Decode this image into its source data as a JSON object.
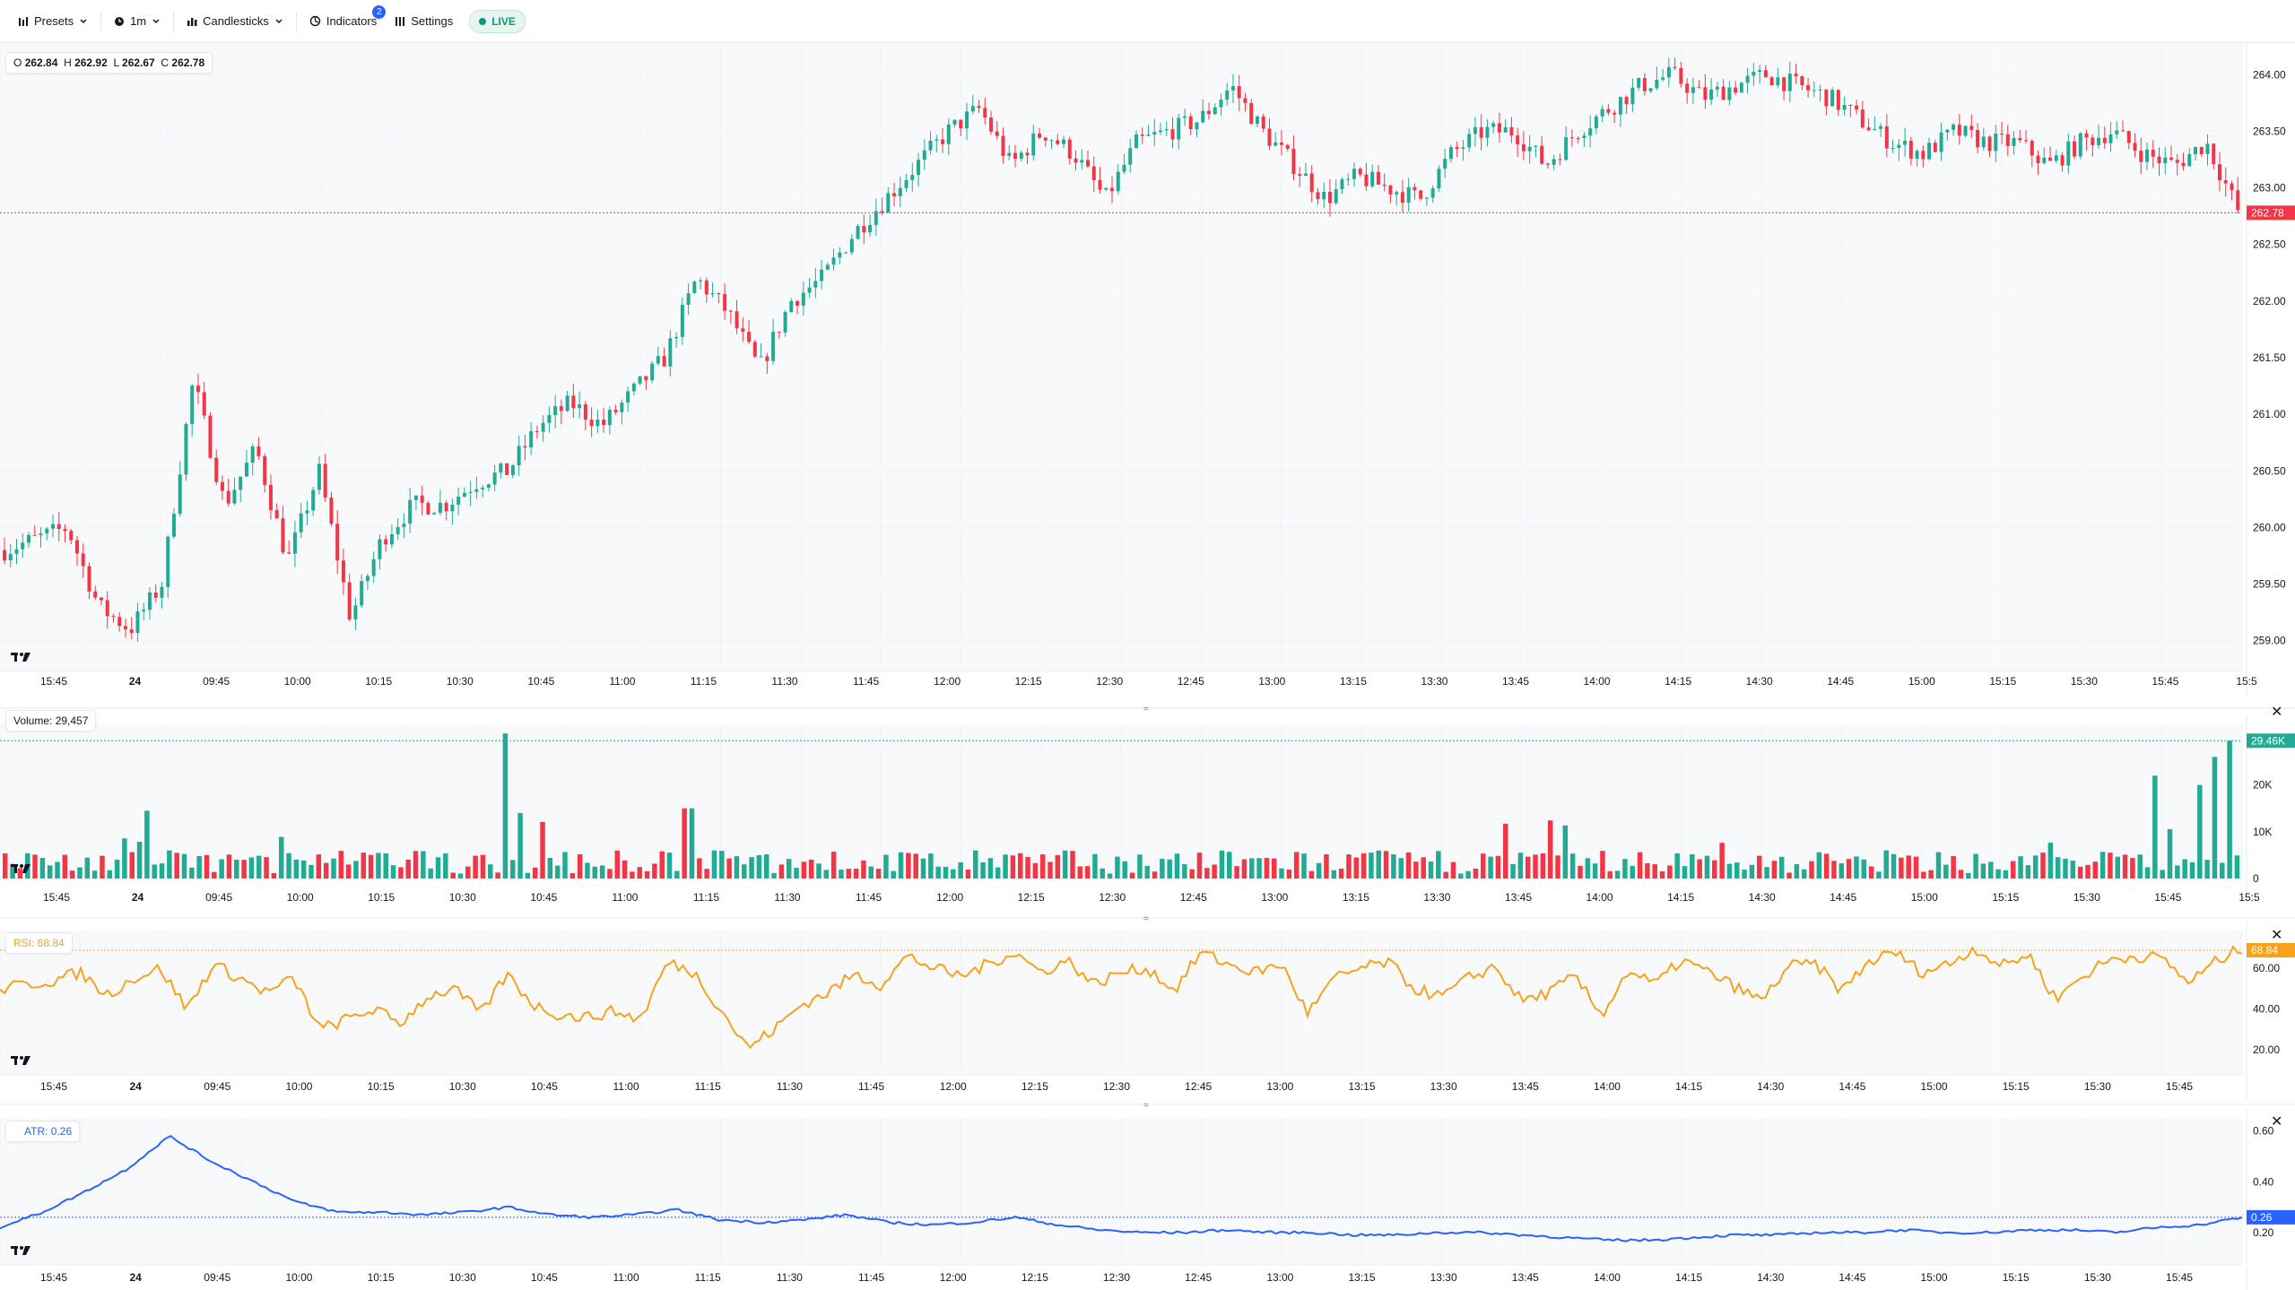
{
  "toolbar": {
    "presets": "Presets",
    "interval": "1m",
    "chart_type": "Candlesticks",
    "indicators": "Indicators",
    "indicators_count": "2",
    "settings": "Settings",
    "live": "LIVE"
  },
  "ohlc": {
    "o_label": "O",
    "o": "262.84",
    "h_label": "H",
    "h": "262.92",
    "l_label": "L",
    "l": "262.67",
    "c_label": "C",
    "c": "262.78"
  },
  "main": {
    "price_ticks": [
      "264.00",
      "263.50",
      "263.00",
      "262.50",
      "262.00",
      "261.50",
      "261.00",
      "260.50",
      "260.00",
      "259.50",
      "259.00"
    ],
    "last_price": "262.78",
    "time_labels": [
      "15:45",
      "24",
      "09:45",
      "10:00",
      "10:15",
      "10:30",
      "10:45",
      "11:00",
      "11:15",
      "11:30",
      "11:45",
      "12:00",
      "12:15",
      "12:30",
      "12:45",
      "13:00",
      "13:15",
      "13:30",
      "13:45",
      "14:00",
      "14:15",
      "14:30",
      "14:45",
      "15:00",
      "15:15",
      "15:30",
      "15:45",
      "15:5"
    ]
  },
  "volume": {
    "legend": "Volume: 29,457",
    "ticks": [
      "20K",
      "10K",
      "0"
    ],
    "last_label": "29.46K"
  },
  "rsi": {
    "legend": "RSI: 68.84",
    "ticks": [
      "60.00",
      "40.00",
      "20.00"
    ],
    "last_label": "68.84"
  },
  "atr": {
    "legend": "ATR: 0.26",
    "ticks": [
      "0.60",
      "0.40",
      "0.20"
    ],
    "last_label": "0.26"
  },
  "colors": {
    "up": "#22ab94",
    "down": "#f23645",
    "rsi": "#f7a21b",
    "atr": "#2962ff",
    "grid": "#f0f3fa"
  },
  "chart_data": [
    {
      "type": "candlestick",
      "title": "",
      "ylim": [
        258.8,
        264.2
      ],
      "last": 262.78,
      "yticks": [
        264.0,
        263.5,
        263.0,
        262.5,
        262.0,
        261.5,
        261.0,
        260.5,
        260.0,
        259.5,
        259.0
      ],
      "path": [
        259.8,
        259.9,
        260.0,
        259.3,
        259.1,
        259.5,
        261.3,
        260.2,
        260.7,
        259.7,
        260.5,
        259.2,
        259.9,
        260.2,
        260.2,
        260.4,
        260.5,
        260.9,
        261.1,
        260.9,
        261.2,
        261.5,
        262.2,
        261.9,
        261.4,
        262.0,
        262.2,
        262.6,
        262.9,
        263.2,
        263.5,
        263.7,
        263.2,
        263.5,
        263.3,
        262.9,
        263.4,
        263.5,
        263.6,
        263.9,
        263.5,
        263.2,
        262.9,
        263.1,
        263.0,
        262.9,
        263.3,
        263.5,
        263.5,
        263.2,
        263.5,
        263.7,
        263.9,
        264.0,
        263.8,
        263.9,
        264.0,
        263.9,
        263.8,
        263.6,
        263.4,
        263.3,
        263.5,
        263.4,
        263.4,
        263.2,
        263.4,
        263.5,
        263.3,
        263.2,
        263.4,
        262.8
      ]
    },
    {
      "type": "bar",
      "title": "Volume",
      "ylim": [
        0,
        32000
      ],
      "last": 29457,
      "base": 4200,
      "spikes": [
        [
          0.065,
          14500
        ],
        [
          0.223,
          31000
        ],
        [
          0.231,
          14000
        ],
        [
          0.306,
          15000
        ],
        [
          0.962,
          22000
        ],
        [
          0.984,
          20000
        ],
        [
          0.991,
          26000
        ],
        [
          0.997,
          29457
        ]
      ]
    },
    {
      "type": "line",
      "title": "RSI",
      "ylim": [
        10,
        75
      ],
      "last": 68.84,
      "path": [
        50,
        52,
        54,
        58,
        47,
        55,
        60,
        40,
        62,
        55,
        48,
        55,
        30,
        35,
        40,
        33,
        46,
        50,
        38,
        57,
        42,
        37,
        36,
        39,
        35,
        63,
        58,
        40,
        21,
        30,
        42,
        48,
        57,
        52,
        66,
        60,
        56,
        62,
        68,
        58,
        64,
        52,
        58,
        60,
        49,
        68,
        62,
        58,
        62,
        38,
        55,
        60,
        63,
        50,
        46,
        55,
        61,
        44,
        48,
        56,
        37,
        59,
        52,
        64,
        58,
        51,
        44,
        61,
        62,
        49,
        63,
        68,
        58,
        62,
        70,
        61,
        67,
        45,
        56,
        64,
        66,
        65,
        53,
        63,
        70
      ]
    },
    {
      "type": "line",
      "title": "ATR",
      "ylim": [
        0.09,
        0.62
      ],
      "last": 0.26,
      "path": [
        0.22,
        0.28,
        0.36,
        0.45,
        0.58,
        0.48,
        0.4,
        0.32,
        0.28,
        0.28,
        0.27,
        0.28,
        0.3,
        0.27,
        0.26,
        0.27,
        0.29,
        0.25,
        0.24,
        0.25,
        0.27,
        0.24,
        0.23,
        0.24,
        0.26,
        0.23,
        0.21,
        0.2,
        0.2,
        0.21,
        0.2,
        0.2,
        0.19,
        0.19,
        0.2,
        0.2,
        0.19,
        0.18,
        0.17,
        0.17,
        0.18,
        0.19,
        0.19,
        0.2,
        0.2,
        0.21,
        0.2,
        0.2,
        0.21,
        0.21,
        0.2,
        0.22,
        0.23,
        0.26
      ]
    }
  ]
}
